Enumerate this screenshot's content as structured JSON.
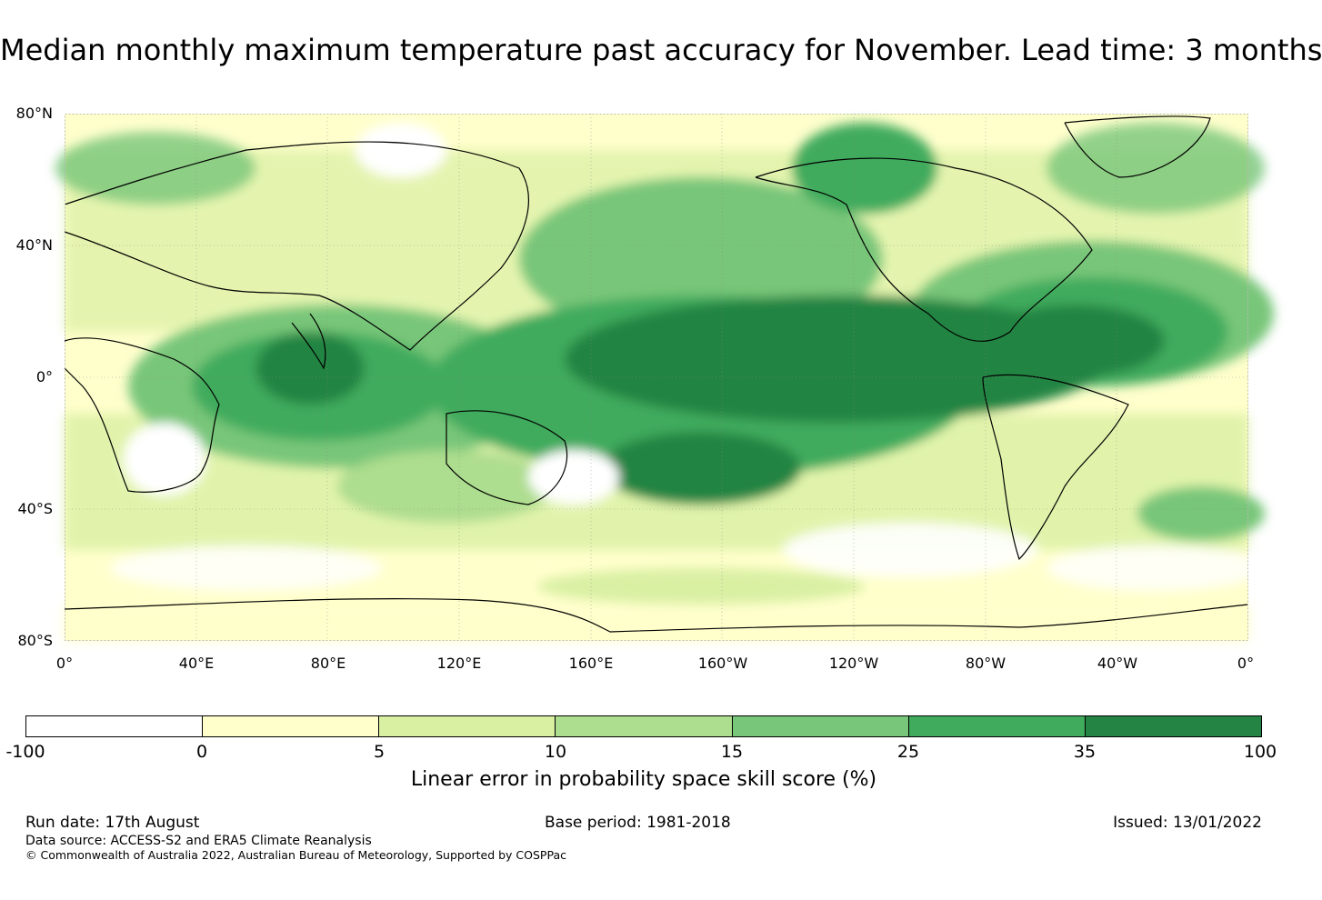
{
  "title": "Median monthly maximum temperature past accuracy for November. Lead time: 3 months",
  "map": {
    "lat_labels": [
      "80°N",
      "40°N",
      "0°",
      "40°S",
      "80°S"
    ],
    "lon_labels": [
      "0°",
      "40°E",
      "80°E",
      "120°E",
      "160°E",
      "160°W",
      "120°W",
      "80°W",
      "40°W",
      "0°"
    ]
  },
  "colorbar": {
    "ticks": [
      "-100",
      "0",
      "5",
      "10",
      "15",
      "25",
      "35",
      "100"
    ],
    "colors": [
      "#ffffff",
      "#ffffcc",
      "#d9f0a3",
      "#addd8e",
      "#78c679",
      "#41ab5d",
      "#238443"
    ],
    "label": "Linear error in probability space skill score (%)"
  },
  "footer": {
    "run_date": "Run date: 17th August",
    "base_period": "Base period: 1981-2018",
    "issued": "Issued: 13/01/2022",
    "data_source": "Data source: ACCESS-S2 and ERA5 Climate Reanalysis",
    "copyright": "© Commonwealth of Australia 2022, Australian Bureau of Meteorology, Supported by COSPPac"
  }
}
